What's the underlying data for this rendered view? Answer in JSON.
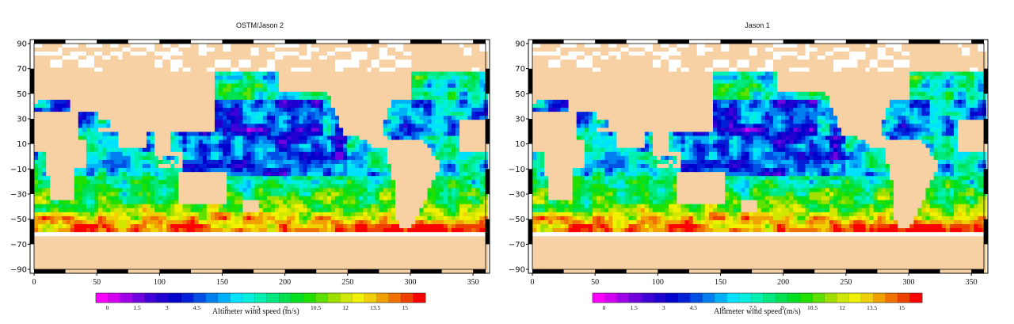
{
  "chart_data": [
    {
      "type": "heatmap",
      "title": "OSTM/Jason 2",
      "xlabel": "",
      "ylabel": "",
      "x_ticks": [
        0,
        50,
        100,
        150,
        200,
        250,
        300,
        350
      ],
      "y_ticks": [
        90,
        70,
        50,
        30,
        10,
        -10,
        -30,
        -50,
        -70,
        -90
      ],
      "xlim": [
        0,
        360
      ],
      "ylim": [
        -90,
        90
      ],
      "colorbar": {
        "label": "Altimeter wind speed (m/s)",
        "ticks": [
          "0",
          "1.5",
          "3",
          "4.5",
          "6",
          "7.5",
          "9",
          "10.5",
          "12",
          "13.5",
          "15"
        ],
        "range": [
          0,
          15
        ],
        "colors": [
          "#ff00ff",
          "#d400f0",
          "#a000e8",
          "#7000e0",
          "#4000d8",
          "#2000d0",
          "#0000cc",
          "#0020d8",
          "#0050e6",
          "#0080f0",
          "#00b0f8",
          "#00e0ff",
          "#00f0e0",
          "#00f0b0",
          "#00e880",
          "#00e050",
          "#00e020",
          "#20e000",
          "#60e000",
          "#a0e000",
          "#d0e800",
          "#f0f000",
          "#f0d000",
          "#f0a000",
          "#f07000",
          "#f04000",
          "#ff0000"
        ]
      },
      "grid": false,
      "notes": "Global map of altimeter wind speed; high winds (10-15 m/s) in Southern Ocean ~50-60S, low (3-6 m/s) in tropical/subtropical Pacific"
    },
    {
      "type": "heatmap",
      "title": "Jason 1",
      "xlabel": "",
      "ylabel": "",
      "x_ticks": [
        0,
        50,
        100,
        150,
        200,
        250,
        300,
        350
      ],
      "y_ticks": [
        90,
        70,
        50,
        30,
        10,
        -10,
        -30,
        -50,
        -70,
        -90
      ],
      "xlim": [
        0,
        360
      ],
      "ylim": [
        -90,
        90
      ],
      "colorbar": {
        "label": "Altimeter wind speed (m/s)",
        "ticks": [
          "0",
          "1.5",
          "3",
          "4.5",
          "6",
          "7.5",
          "9",
          "10.5",
          "12",
          "13.5",
          "15"
        ],
        "range": [
          0,
          15
        ]
      },
      "grid": false
    }
  ],
  "panels": [
    {
      "title": "OSTM/Jason 2",
      "colorbar_label": "Altimeter wind speed (m/s)"
    },
    {
      "title": "Jason 1",
      "colorbar_label": "Altimeter wind speed (m/s)"
    }
  ],
  "colors": {
    "land": "#f7d1a4",
    "frame": "#000000"
  }
}
